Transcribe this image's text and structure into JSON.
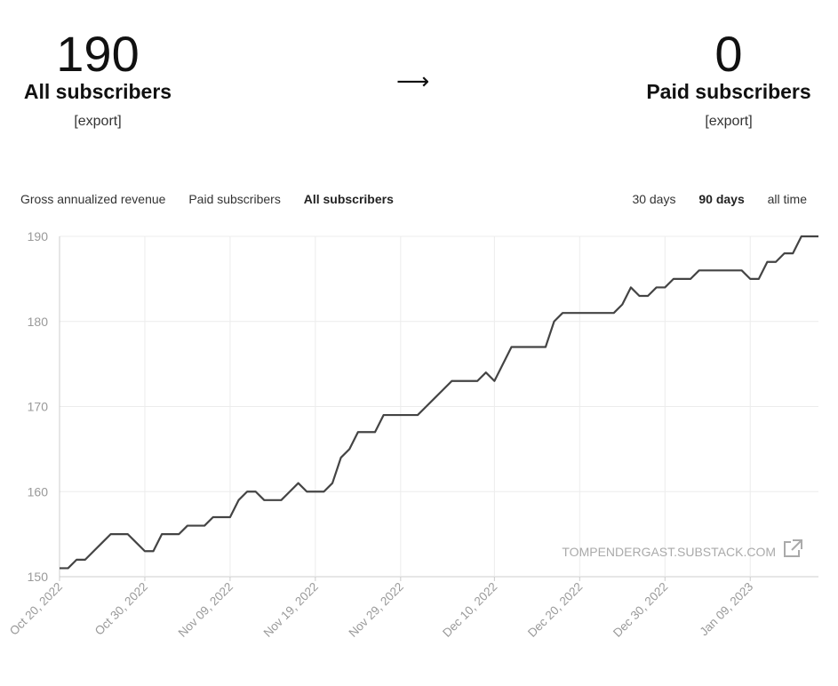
{
  "stats": {
    "all": {
      "value": "190",
      "label": "All subscribers",
      "export": "[export]"
    },
    "paid": {
      "value": "0",
      "label": "Paid subscribers",
      "export": "[export]"
    },
    "arrow": "⟶"
  },
  "tabs": {
    "metrics": [
      "Gross annualized revenue",
      "Paid subscribers",
      "All subscribers"
    ],
    "active_metric": 2,
    "ranges": [
      "30 days",
      "90 days",
      "all time"
    ],
    "active_range": 1
  },
  "watermark": "TOMPENDERGAST.SUBSTACK.COM",
  "colors": {
    "line": "#444444",
    "grid": "#ececec",
    "axis": "#cccccc"
  },
  "chart_data": {
    "type": "line",
    "series": [
      {
        "values": [
          151,
          151,
          152,
          152,
          153,
          154,
          155,
          155,
          155,
          154,
          153,
          153,
          155,
          155,
          155,
          156,
          156,
          156,
          157,
          157,
          157,
          159,
          160,
          160,
          159,
          159,
          159,
          160,
          161,
          160,
          160,
          160,
          161,
          164,
          165,
          167,
          167,
          167,
          169,
          169,
          169,
          169,
          169,
          170,
          171,
          172,
          173,
          173,
          173,
          173,
          174,
          173,
          175,
          177,
          177,
          177,
          177,
          177,
          180,
          181,
          181,
          181,
          181,
          181,
          181,
          181,
          182,
          184,
          183,
          183,
          184,
          184,
          185,
          185,
          185,
          186,
          186,
          186,
          186,
          186,
          186,
          185,
          185,
          187,
          187,
          188,
          188,
          190,
          190,
          190
        ]
      }
    ],
    "x_start": "2022-10-20",
    "x_end": "2023-01-17",
    "x_ticks": [
      "Oct 20, 2022",
      "Oct 30, 2022",
      "Nov 09, 2022",
      "Nov 19, 2022",
      "Nov 29, 2022",
      "Dec 10, 2022",
      "Dec 20, 2022",
      "Dec 30, 2022",
      "Jan 09, 2023"
    ],
    "y_ticks": [
      150,
      160,
      170,
      180,
      190
    ],
    "ylim": [
      150,
      190
    ],
    "grid": true
  }
}
